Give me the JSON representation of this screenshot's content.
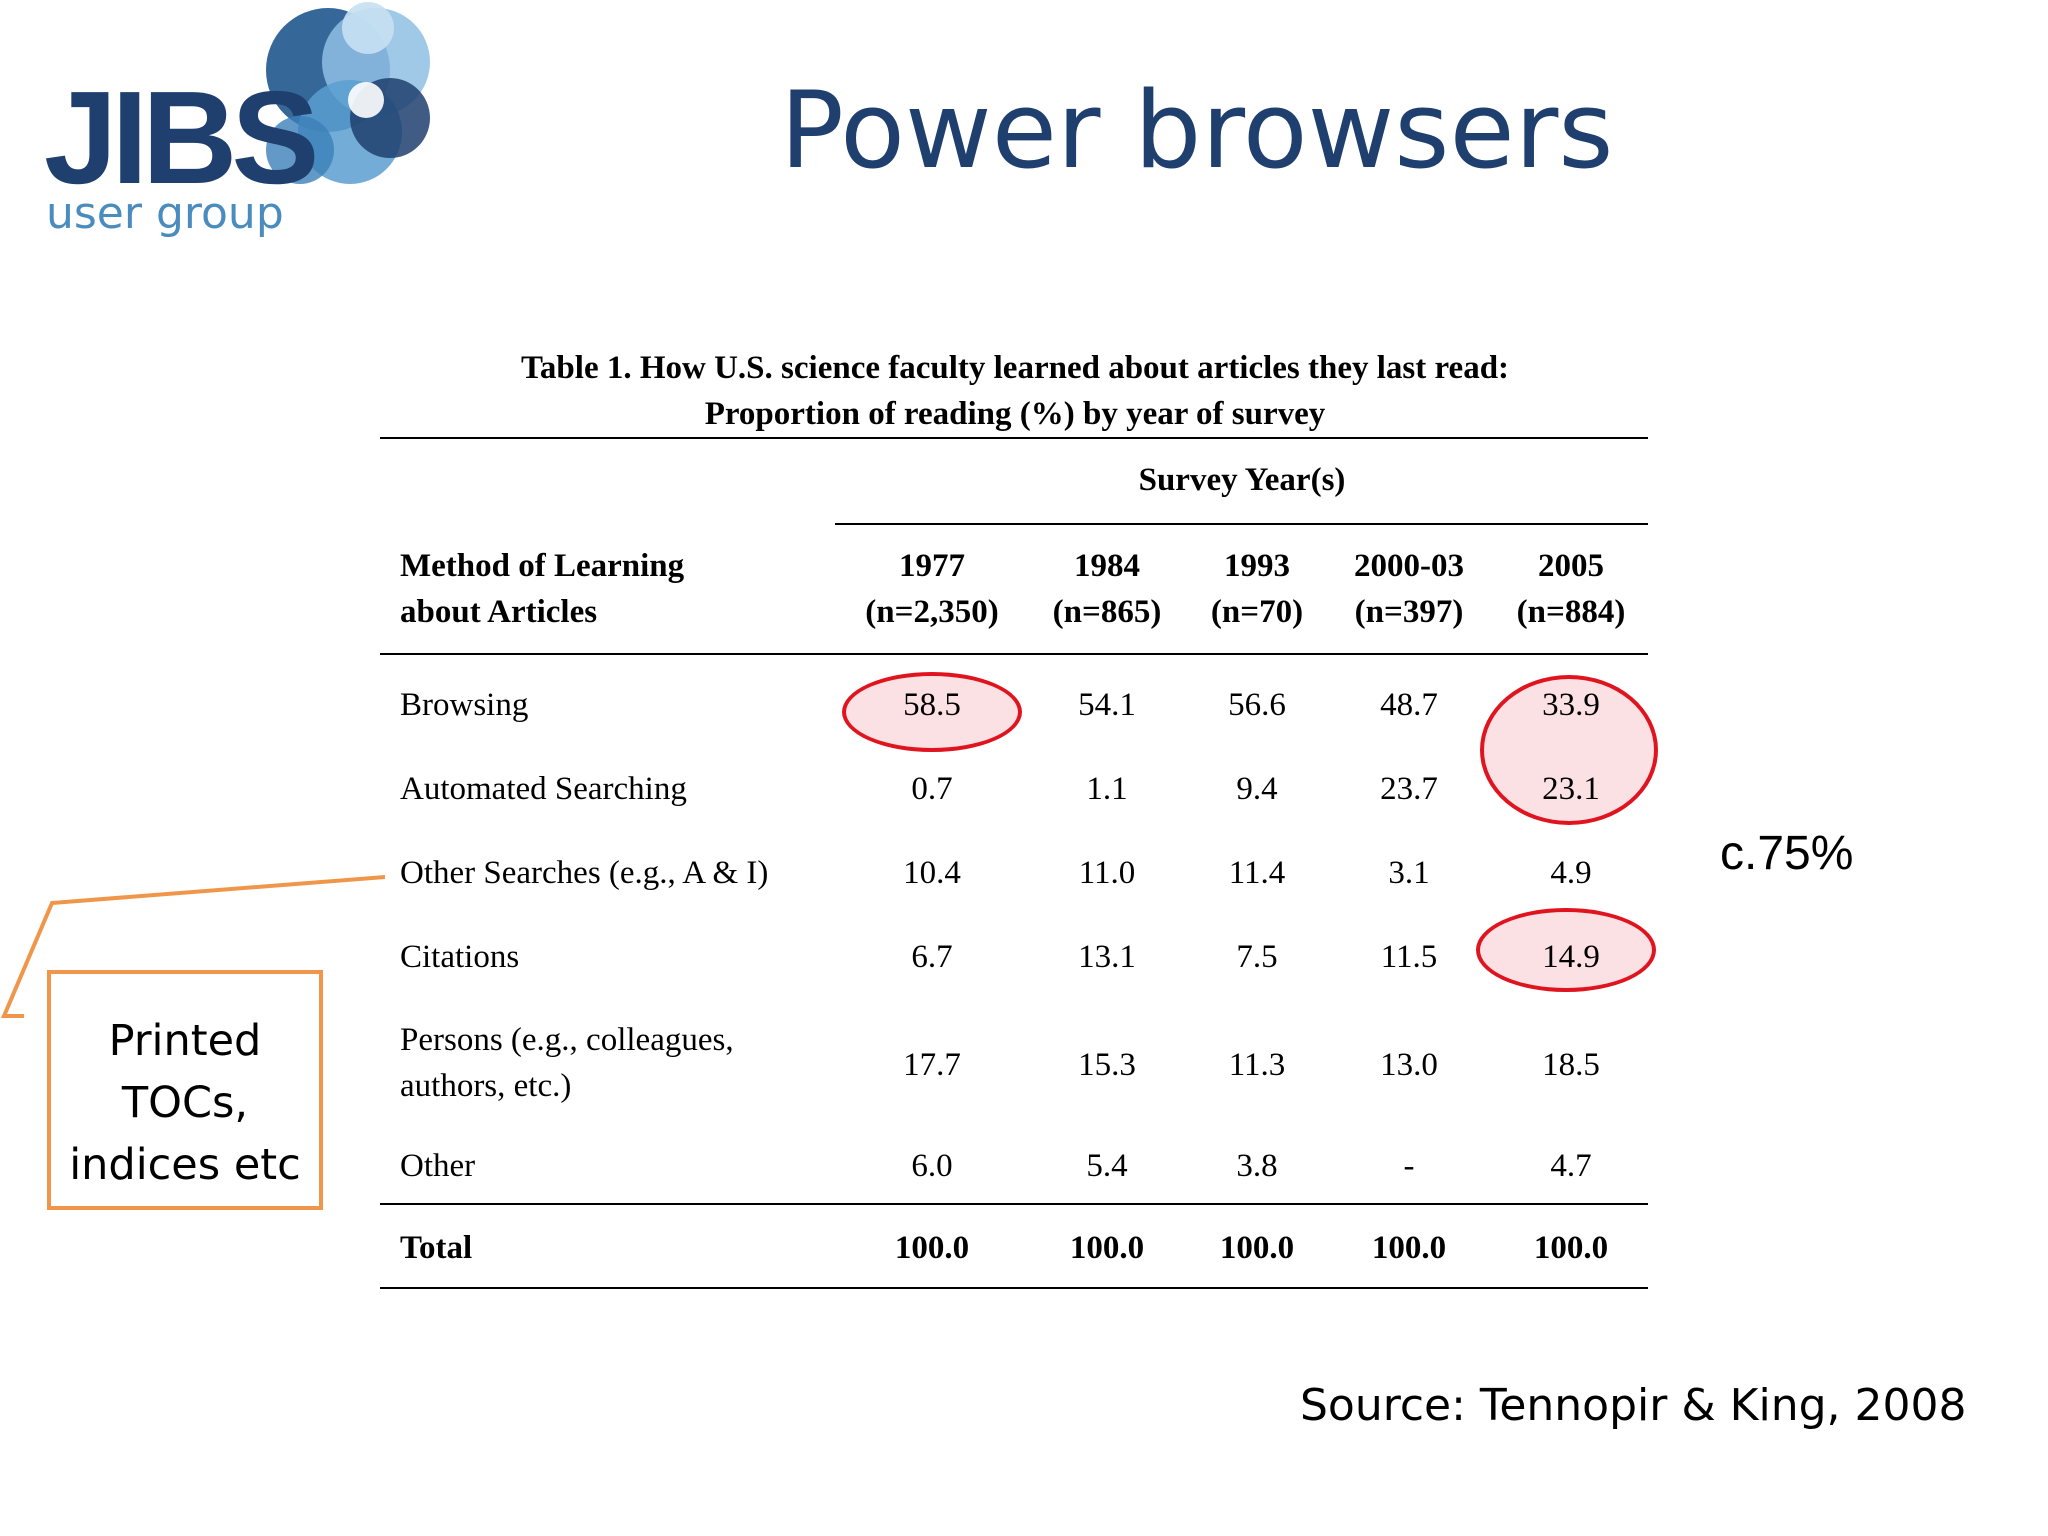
{
  "logo": {
    "name": "JIBS",
    "tagline": "user group"
  },
  "slide": {
    "title": "Power browsers"
  },
  "table": {
    "caption_line1": "Table 1. How U.S. science faculty learned about articles they last read:",
    "caption_line2": "Proportion of reading (%) by year of survey",
    "group_header": "Survey Year(s)",
    "row_header_line1": "Method of Learning",
    "row_header_line2": "about Articles",
    "columns": [
      {
        "year": "1977",
        "n": "(n=2,350)"
      },
      {
        "year": "1984",
        "n": "(n=865)"
      },
      {
        "year": "1993",
        "n": "(n=70)"
      },
      {
        "year": "2000-03",
        "n": "(n=397)"
      },
      {
        "year": "2005",
        "n": "(n=884)"
      }
    ],
    "rows": [
      {
        "label": "Browsing",
        "values": [
          "58.5",
          "54.1",
          "56.6",
          "48.7",
          "33.9"
        ]
      },
      {
        "label": "Automated Searching",
        "values": [
          "0.7",
          "1.1",
          "9.4",
          "23.7",
          "23.1"
        ]
      },
      {
        "label": "Other Searches (e.g., A & I)",
        "values": [
          "10.4",
          "11.0",
          "11.4",
          "3.1",
          "4.9"
        ]
      },
      {
        "label": "Citations",
        "values": [
          "6.7",
          "13.1",
          "7.5",
          "11.5",
          "14.9"
        ]
      },
      {
        "label_line1": "Persons (e.g., colleagues,",
        "label_line2": "authors, etc.)",
        "values": [
          "17.7",
          "15.3",
          "11.3",
          "13.0",
          "18.5"
        ]
      },
      {
        "label": "Other",
        "values": [
          "6.0",
          "5.4",
          "3.8",
          "-",
          "4.7"
        ]
      }
    ],
    "total": {
      "label": "Total",
      "values": [
        "100.0",
        "100.0",
        "100.0",
        "100.0",
        "100.0"
      ]
    }
  },
  "annotations": {
    "callout_line1": "Printed",
    "callout_line2": "TOCs,",
    "callout_line3": "indices etc",
    "percent_note": "c.75%",
    "circle_color": "#e0141e",
    "callout_color": "#f0964a"
  },
  "source": {
    "text": "Source: Tennopir & King, 2008"
  }
}
